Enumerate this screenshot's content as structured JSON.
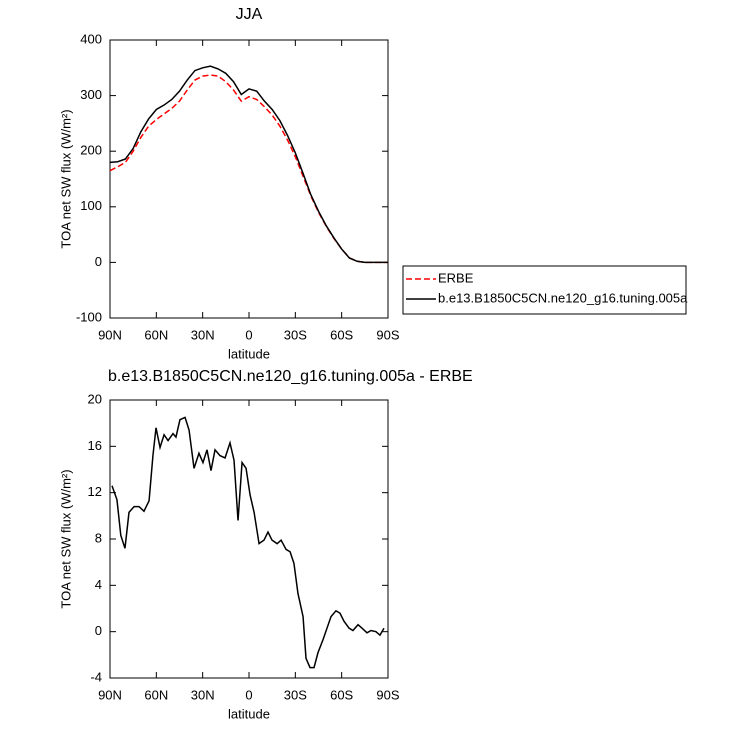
{
  "chart_data": [
    {
      "type": "line",
      "title": "JJA",
      "xlabel": "latitude",
      "ylabel": "TOA net SW flux (W/m²)",
      "x": [
        90,
        85,
        80,
        75,
        70,
        65,
        60,
        55,
        50,
        45,
        40,
        35,
        30,
        25,
        20,
        15,
        10,
        5,
        0,
        -5,
        -10,
        -15,
        -20,
        -25,
        -30,
        -35,
        -40,
        -45,
        -50,
        -55,
        -60,
        -65,
        -70,
        -75,
        -80,
        -85,
        -90
      ],
      "series": [
        {
          "name": "ERBE",
          "color": "#ff0000",
          "style": "dashed",
          "values": [
            165,
            172,
            180,
            200,
            225,
            245,
            257,
            267,
            277,
            290,
            310,
            328,
            335,
            337,
            335,
            325,
            310,
            290,
            298,
            293,
            280,
            265,
            245,
            220,
            190,
            155,
            120,
            90,
            65,
            43,
            24,
            8,
            2,
            0,
            0,
            0,
            0
          ]
        },
        {
          "name": "b.e13.B1850C5CN.ne120_g16.tuning.005a",
          "color": "#000000",
          "style": "solid",
          "values": [
            180,
            181,
            186,
            205,
            235,
            258,
            275,
            283,
            293,
            308,
            328,
            345,
            350,
            353,
            348,
            340,
            325,
            302,
            312,
            308,
            290,
            275,
            255,
            228,
            197,
            160,
            122,
            92,
            66,
            44,
            24,
            8,
            2,
            0,
            0,
            0,
            0
          ]
        }
      ],
      "xlim": [
        90,
        -90
      ],
      "xticks": [
        {
          "value": 90,
          "label": "90N"
        },
        {
          "value": 60,
          "label": "60N"
        },
        {
          "value": 30,
          "label": "30N"
        },
        0,
        {
          "value": -30,
          "label": "30S"
        },
        {
          "value": -60,
          "label": "60S"
        },
        {
          "value": -90,
          "label": "90S"
        }
      ],
      "ylim": [
        -100,
        400
      ],
      "yticks": [
        -100,
        0,
        100,
        200,
        300,
        400
      ],
      "legend": "outside right"
    },
    {
      "type": "line",
      "title": "b.e13.B1850C5CN.ne120_g16.tuning.005a - ERBE",
      "xlabel": "latitude",
      "ylabel": "TOA net SW flux (W/m²)",
      "x": [
        88.7,
        85.5,
        83,
        80.3,
        77.7,
        74.4,
        71.2,
        68,
        64.7,
        62.2,
        60.2,
        57.6,
        55,
        52.4,
        49.2,
        47.3,
        44.7,
        41.4,
        38.8,
        35.6,
        32.4,
        29.8,
        27.2,
        24.6,
        22,
        18.8,
        15.5,
        12.3,
        9.7,
        7.1,
        4.5,
        1.9,
        -0.7,
        -3.3,
        -6.5,
        -9.7,
        -12.3,
        -14.9,
        -18.2,
        -20.8,
        -24,
        -26.6,
        -29.1,
        -31.7,
        -35,
        -36.9,
        -39.5,
        -42.1,
        -44.7,
        -47.9,
        -50.5,
        -53.1,
        -56.3,
        -58.9,
        -61.5,
        -64.8,
        -67.3,
        -70.6,
        -73.2,
        -76.4,
        -79,
        -82.2,
        -84.8,
        -87.4
      ],
      "series": [
        {
          "color": "#000000",
          "style": "solid",
          "values": [
            12.6,
            11.4,
            8.3,
            7.2,
            10.3,
            10.8,
            10.8,
            10.4,
            11.3,
            15.2,
            17.6,
            15.9,
            17,
            16.5,
            17.1,
            16.8,
            18.3,
            18.5,
            17.4,
            14.1,
            15.4,
            14.6,
            15.7,
            13.9,
            15.7,
            15.2,
            15,
            16.3,
            14.8,
            9.6,
            14.6,
            14.1,
            11.8,
            10.3,
            7.6,
            7.9,
            8.6,
            7.9,
            7.6,
            7.9,
            7.1,
            6.9,
            5.9,
            3.3,
            1.3,
            -2.3,
            -3.1,
            -3.1,
            -1.8,
            -0.7,
            0.3,
            1.3,
            1.8,
            1.6,
            0.9,
            0.3,
            0.1,
            0.6,
            0.3,
            -0.1,
            0.1,
            0,
            -0.3,
            0.3
          ]
        }
      ],
      "xlim": [
        90,
        -90
      ],
      "xticks": [
        {
          "value": 90,
          "label": "90N"
        },
        {
          "value": 60,
          "label": "60N"
        },
        {
          "value": 30,
          "label": "30N"
        },
        0,
        {
          "value": -30,
          "label": "30S"
        },
        {
          "value": -60,
          "label": "60S"
        },
        {
          "value": -90,
          "label": "90S"
        }
      ],
      "ylim": [
        -4,
        20
      ],
      "yticks": [
        -4,
        0,
        4,
        8,
        12,
        16,
        20
      ]
    }
  ]
}
